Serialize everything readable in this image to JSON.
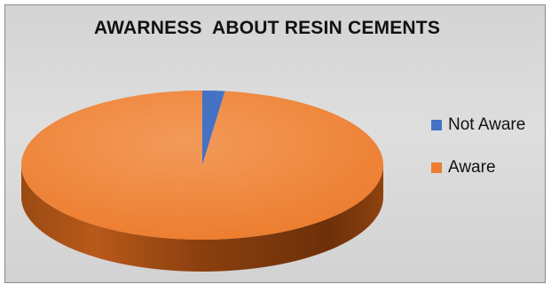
{
  "chart_data": {
    "type": "pie",
    "title": "AWARNESS  ABOUT RESIN CEMENTS",
    "categories": [
      "Not Aware",
      "Aware"
    ],
    "values": [
      2,
      98
    ],
    "colors": [
      "#4472c4",
      "#ed7d31"
    ],
    "legend_position": "right",
    "style": "3d"
  }
}
